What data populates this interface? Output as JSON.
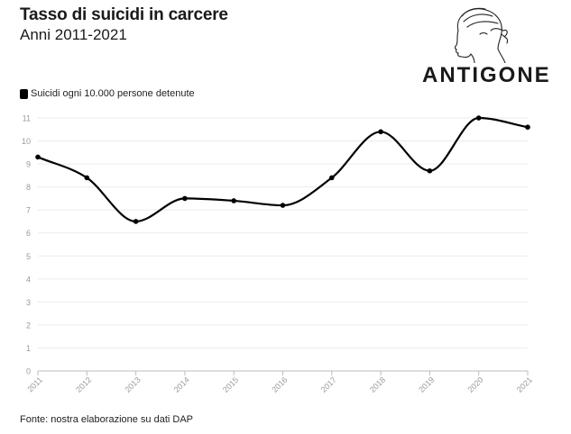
{
  "header": {
    "title": "Tasso di suicidi in carcere",
    "subtitle": "Anni 2011-2021"
  },
  "logo": {
    "text": "ANTIGONE"
  },
  "source": "Fonte: nostra elaborazione su dati DAP",
  "chart_data": {
    "type": "line",
    "categories": [
      "2011",
      "2012",
      "2013",
      "2014",
      "2015",
      "2016",
      "2017",
      "2018",
      "2019",
      "2020",
      "2021"
    ],
    "series": [
      {
        "name": "Suicidi ogni 10.000 persone detenute",
        "values": [
          9.3,
          8.4,
          6.5,
          7.5,
          7.4,
          7.2,
          8.4,
          10.4,
          8.7,
          11.0,
          10.6
        ],
        "color": "#000000"
      }
    ],
    "yticks": [
      0,
      1,
      2,
      3,
      4,
      5,
      6,
      7,
      8,
      9,
      10,
      11
    ],
    "ylim": [
      0,
      11
    ],
    "grid": true,
    "legend_position": "top-left",
    "curve": "smooth"
  }
}
